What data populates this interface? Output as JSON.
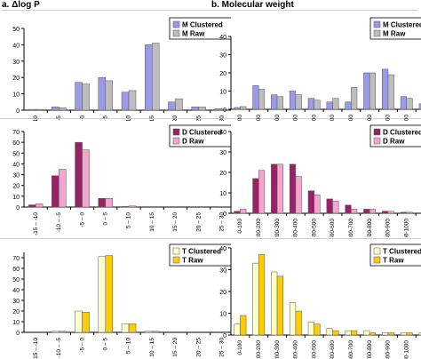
{
  "titles": {
    "left": "a. Δlog P",
    "right": "b. Molecular weight"
  },
  "style": {
    "colors": {
      "M_clustered": "#9a9ae8",
      "M_raw": "#bdbdbd",
      "D_clustered": "#992266",
      "D_raw": "#f3a4cf",
      "T_clustered": "#ffffcc",
      "T_raw": "#ffcc00",
      "axis": "#000000",
      "panel_separator": "#cfcfcf"
    }
  },
  "chart_data": [
    {
      "type": "bar",
      "categories": [
        "-15 – -10",
        "-10 – -5",
        "-5 – 0",
        "0 – 5",
        "5 – 10",
        "10 – 15",
        "15 – 20",
        "20 – 25",
        "25 – 30"
      ],
      "series": [
        {
          "name": "M Clustered",
          "values": [
            0.5,
            2,
            17,
            20,
            11,
            40,
            5,
            2,
            1
          ]
        },
        {
          "name": "M Raw",
          "values": [
            0.5,
            1.5,
            16,
            18,
            12,
            41,
            7,
            2,
            0.5
          ]
        }
      ],
      "yticks": [
        0,
        10,
        20,
        30,
        40,
        50
      ],
      "ylim": [
        0,
        50
      ],
      "legend": "top-right"
    },
    {
      "type": "bar",
      "categories": [
        "-15 – -10",
        "-10 – -5",
        "-5 – 0",
        "0 – 5",
        "5 – 10",
        "10 – 15",
        "15 – 20",
        "20 – 25",
        "25 – 30"
      ],
      "series": [
        {
          "name": "D Clustered",
          "values": [
            2,
            29,
            60,
            8,
            0.5,
            0,
            0,
            0,
            0
          ]
        },
        {
          "name": "D Raw",
          "values": [
            3,
            35,
            53,
            8,
            1,
            0,
            0,
            0,
            0
          ]
        }
      ],
      "yticks": [
        0,
        10,
        20,
        30,
        40,
        50,
        60,
        70
      ],
      "ylim": [
        0,
        70
      ],
      "legend": "top-right"
    },
    {
      "type": "bar",
      "categories": [
        "-15 – -10",
        "-10 – -5",
        "-5 – 0",
        "0 – 5",
        "5 – 10",
        "10 – 15",
        "15 – 20",
        "20 – 25",
        "25 – 30"
      ],
      "series": [
        {
          "name": "T Clustered",
          "values": [
            0,
            1,
            20,
            71,
            8,
            1,
            0,
            0,
            0
          ]
        },
        {
          "name": "T Raw",
          "values": [
            0,
            1,
            19,
            72,
            8,
            1,
            0,
            0,
            0
          ]
        }
      ],
      "yticks": [
        0,
        10,
        20,
        30,
        40,
        50,
        60,
        70
      ],
      "ylim": [
        0,
        75
      ],
      "legend": "top-right"
    },
    {
      "type": "bar",
      "categories": [
        "0-100",
        "100-200",
        "200-300",
        "300-400",
        "400-500",
        "500-600",
        "600-700",
        "700-800",
        "800-900",
        "900-1000",
        "1000-1100"
      ],
      "series": [
        {
          "name": "M Clustered",
          "values": [
            1,
            13,
            8,
            10,
            6,
            4,
            4,
            20,
            22,
            7,
            3
          ]
        },
        {
          "name": "M Raw",
          "values": [
            1.5,
            11,
            7,
            8,
            5,
            6,
            12,
            20,
            19,
            6,
            1
          ]
        }
      ],
      "yticks": [
        0,
        10,
        20,
        30,
        40
      ],
      "ylim": [
        0,
        40
      ],
      "legend": "top-right"
    },
    {
      "type": "bar",
      "categories": [
        "0-100",
        "100-200",
        "200-300",
        "300-400",
        "400-500",
        "500-600",
        "600-700",
        "700-800",
        "800-900",
        "900-1000",
        "1000-1100"
      ],
      "series": [
        {
          "name": "D Clustered",
          "values": [
            1,
            17,
            24,
            24,
            11,
            7,
            4,
            2,
            1,
            0.5,
            0
          ]
        },
        {
          "name": "D Raw",
          "values": [
            2,
            21,
            24,
            18,
            9,
            6,
            2,
            2,
            1,
            0.5,
            0
          ]
        }
      ],
      "yticks": [
        0,
        10,
        20,
        30,
        40
      ],
      "ylim": [
        0,
        40
      ],
      "legend": "top-right"
    },
    {
      "type": "bar",
      "categories": [
        "0-100",
        "100-200",
        "200-300",
        "300-400",
        "400-500",
        "500-600",
        "600-700",
        "700-800",
        "800-900",
        "900-1000",
        "1000-1100"
      ],
      "series": [
        {
          "name": "T Clustered",
          "values": [
            5,
            33,
            29,
            15,
            6,
            3,
            2,
            2,
            1,
            1,
            1
          ]
        },
        {
          "name": "T Raw",
          "values": [
            9,
            37,
            27,
            11,
            5,
            2,
            2,
            1,
            1,
            1,
            1
          ]
        }
      ],
      "yticks": [
        0,
        10,
        20,
        30,
        40
      ],
      "ylim": [
        0,
        40
      ],
      "legend": "top-right"
    }
  ]
}
